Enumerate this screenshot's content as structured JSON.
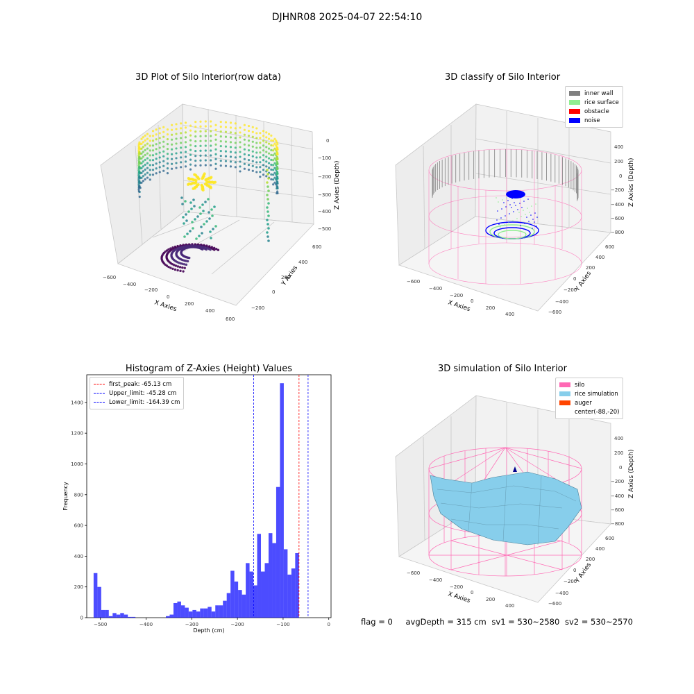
{
  "suptitle": "DJHNR08 2025-04-07 22:54:10",
  "footer": {
    "flag": "flag = 0",
    "avg_depth": "avgDepth = 315 cm",
    "sv1": "sv1 = 530~2580",
    "sv2": "sv2 = 530~2570"
  },
  "chart_data": [
    {
      "type": "scatter",
      "title": "3D Plot of Silo Interior(row data)",
      "xlabel": "X Axies",
      "ylabel": "Y Axies",
      "zlabel": "Z Axies (Depth)",
      "x_ticks": [
        "−600",
        "−400",
        "−200",
        "0",
        "200",
        "400",
        "600"
      ],
      "y_ticks": [
        "−200",
        "0",
        "200",
        "400",
        "600"
      ],
      "z_ticks": [
        "−500",
        "−400",
        "−300",
        "−200",
        "−100",
        "0"
      ],
      "colormap": "viridis"
    },
    {
      "type": "scatter",
      "title": "3D classify of Silo Interior",
      "xlabel": "X Axies",
      "ylabel": "Y Axies",
      "zlabel": "Z Axies (Depth)",
      "x_ticks": [
        "−600",
        "−400",
        "−200",
        "0",
        "200",
        "400"
      ],
      "y_ticks": [
        "−600",
        "−400",
        "−200",
        "0",
        "200",
        "400",
        "600"
      ],
      "z_ticks": [
        "−800",
        "−600",
        "−400",
        "−200",
        "0",
        "200",
        "400"
      ],
      "legend": [
        {
          "label": "inner wall",
          "color": "#808080"
        },
        {
          "label": "rice surface",
          "color": "#90ee90"
        },
        {
          "label": "obstacle",
          "color": "#ff0000"
        },
        {
          "label": "noise",
          "color": "#0000ff"
        }
      ]
    },
    {
      "type": "bar",
      "title": "Histogram of Z-Axies (Height) Values",
      "xlabel": "Depth (cm)",
      "ylabel": "Frequency",
      "xlim": [
        -530,
        5
      ],
      "ylim": [
        0,
        1580
      ],
      "x_ticks": [
        -500,
        -400,
        -300,
        -200,
        -100,
        0
      ],
      "y_ticks": [
        0,
        200,
        400,
        600,
        800,
        1000,
        1200,
        1400
      ],
      "bin_start": -515,
      "bin_width": 8.33,
      "values": [
        290,
        200,
        50,
        50,
        10,
        30,
        20,
        30,
        20,
        5,
        5,
        0,
        0,
        0,
        0,
        0,
        0,
        0,
        0,
        10,
        20,
        95,
        105,
        80,
        65,
        40,
        50,
        40,
        60,
        60,
        70,
        40,
        80,
        80,
        110,
        160,
        305,
        235,
        180,
        150,
        355,
        300,
        210,
        545,
        300,
        355,
        550,
        485,
        850,
        1525,
        445,
        280,
        320,
        420
      ],
      "bar_color": "#0000ff",
      "vlines": [
        {
          "label": "first_peak: -65.13 cm",
          "x": -65.13,
          "color": "#ff0000"
        },
        {
          "label": "Upper_limit: -45.28 cm",
          "x": -45.28,
          "color": "#0000ff"
        },
        {
          "label": "Lower_limit: -164.39 cm",
          "x": -164.39,
          "color": "#0000ff"
        }
      ]
    },
    {
      "type": "area",
      "title": "3D simulation of Silo Interior",
      "xlabel": "X Axies",
      "ylabel": "Y Axies",
      "zlabel": "Z Axies (Depth)",
      "x_ticks": [
        "−600",
        "−400",
        "−200",
        "0",
        "200",
        "400"
      ],
      "y_ticks": [
        "−600",
        "−400",
        "−200",
        "0",
        "200",
        "400",
        "600"
      ],
      "z_ticks": [
        "−800",
        "−600",
        "−400",
        "−200",
        "0",
        "200",
        "400"
      ],
      "legend": [
        {
          "label": "silo",
          "color": "#ff69b4"
        },
        {
          "label": "rice simulation",
          "color": "#87ceeb"
        },
        {
          "label": "auger",
          "color": "#ff4500"
        },
        {
          "label": "center(-88,-20)",
          "color": "#ffffff"
        }
      ]
    }
  ]
}
